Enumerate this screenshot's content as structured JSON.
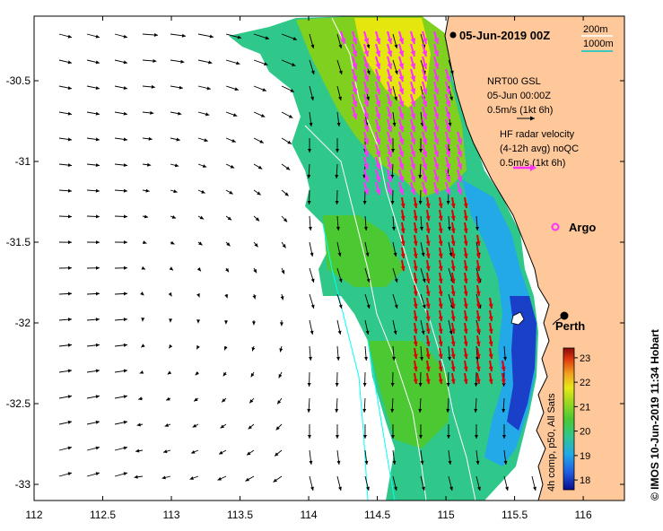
{
  "title": "05-Jun-2019 00Z",
  "scale": {
    "depth1": "200m",
    "depth2": "1000m"
  },
  "legend": {
    "model_label": "NRT00 GSL",
    "model_time": "05-Jun 00:00Z",
    "model_scale": "0.5m/s (1kt 6h)",
    "radar_label": "HF radar velocity",
    "radar_detail": "(4-12h avg) noQC",
    "radar_scale": "0.5m/s (1kt 6h)"
  },
  "places": [
    {
      "name": "Argo",
      "lon": 115.88,
      "lat": -31.45
    },
    {
      "name": "Perth",
      "lon": 115.86,
      "lat": -31.95
    }
  ],
  "axes": {
    "x_ticks": [
      "112",
      "112.5",
      "113",
      "113.5",
      "114",
      "114.5",
      "115",
      "115.5",
      "116"
    ],
    "y_ticks": [
      "-30.5",
      "-31",
      "-31.5",
      "-32",
      "-32.5",
      "-33"
    ],
    "xlim": [
      112,
      116.3
    ],
    "ylim": [
      -33.1,
      -30.1
    ]
  },
  "colorbar": {
    "label": "4h comp, p50, All Sats",
    "ticks": [
      "18",
      "19",
      "20",
      "21",
      "22",
      "23"
    ],
    "range": [
      17.6,
      23.4
    ],
    "colors": [
      "#0a0a8c",
      "#1f5be0",
      "#23a8e8",
      "#2fc78a",
      "#4cc832",
      "#9fd821",
      "#e8e817",
      "#f0a020",
      "#e03a10",
      "#8a0a0a"
    ]
  },
  "credit": "© IMOS 10-Jun-2019 11:34 Hobart",
  "colors": {
    "land": "#ffc89a",
    "model_arrow": "#000000",
    "radar_arrow": "#ff33ff",
    "radar_arrow_south": "#e00000",
    "depth_200": "#ffffff",
    "depth_1000": "#00ffff"
  }
}
